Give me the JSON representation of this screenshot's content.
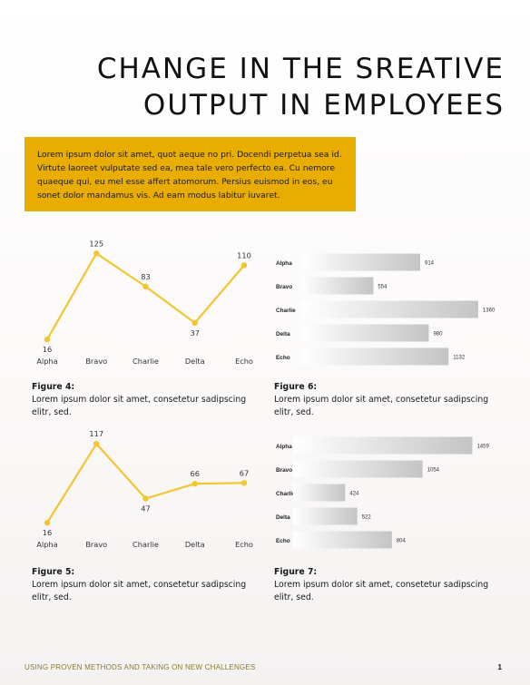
{
  "header": {
    "title_line1": "CHANGE IN THE SREATIVE",
    "title_line2": "OUTPUT IN EMPLOYEES"
  },
  "intro": {
    "text": "Lorem ipsum dolor sit amet, quot aeque no pri. Docendi perpetua sea id. Virtute laoreet vulputate sed ea, mea tale vero perfecto ea. Cu nemore quaeque qui, eu mel esse affert atomorum. Persius euismod in eos, eu sonet dolor mandamus vis. Ad eam modus labitur iuvaret."
  },
  "captions": {
    "fig4": {
      "title": "Figure 4:",
      "text": "Lorem ipsum dolor sit amet, consetetur sadipscing elitr, sed."
    },
    "fig6": {
      "title": "Figure 6:",
      "text": "Lorem ipsum dolor sit amet, consetetur sadipscing elitr, sed."
    },
    "fig5": {
      "title": "Figure 5:",
      "text": "Lorem ipsum dolor sit amet, consetetur sadipscing elitr, sed."
    },
    "fig7": {
      "title": "Figure 7:",
      "text": "Lorem ipsum dolor sit amet, consetetur sadipscing elitr, sed."
    }
  },
  "footer": {
    "text": "USING PROVEN METHODS AND TAKING ON NEW CHALLENGES",
    "page_number": "1"
  },
  "colors": {
    "accent": "#e9ac00",
    "line": "#f2c62e",
    "bar_dark": "#c4c4c4",
    "bar_light": "#ffffff"
  },
  "chart_data": [
    {
      "id": "fig4",
      "type": "line",
      "categories": [
        "Alpha",
        "Bravo",
        "Charlie",
        "Delta",
        "Echo"
      ],
      "values": [
        16,
        125,
        83,
        37,
        110
      ],
      "ylim": [
        0,
        130
      ]
    },
    {
      "id": "fig6",
      "type": "bar",
      "orientation": "horizontal",
      "categories": [
        "Alpha",
        "Bravo",
        "Charlie",
        "Delta",
        "Echo"
      ],
      "values": [
        914,
        554,
        1360,
        980,
        1132
      ],
      "xlim": [
        0,
        1500
      ]
    },
    {
      "id": "fig5",
      "type": "line",
      "categories": [
        "Alpha",
        "Bravo",
        "Charlie",
        "Delta",
        "Echo"
      ],
      "values": [
        16,
        117,
        47,
        66,
        67
      ],
      "ylim": [
        0,
        130
      ]
    },
    {
      "id": "fig7",
      "type": "bar",
      "orientation": "horizontal",
      "categories": [
        "Alpha",
        "Bravo",
        "Charlie",
        "Delta",
        "Echo"
      ],
      "values": [
        1459,
        1054,
        424,
        522,
        804
      ],
      "xlim": [
        0,
        1500
      ]
    }
  ]
}
